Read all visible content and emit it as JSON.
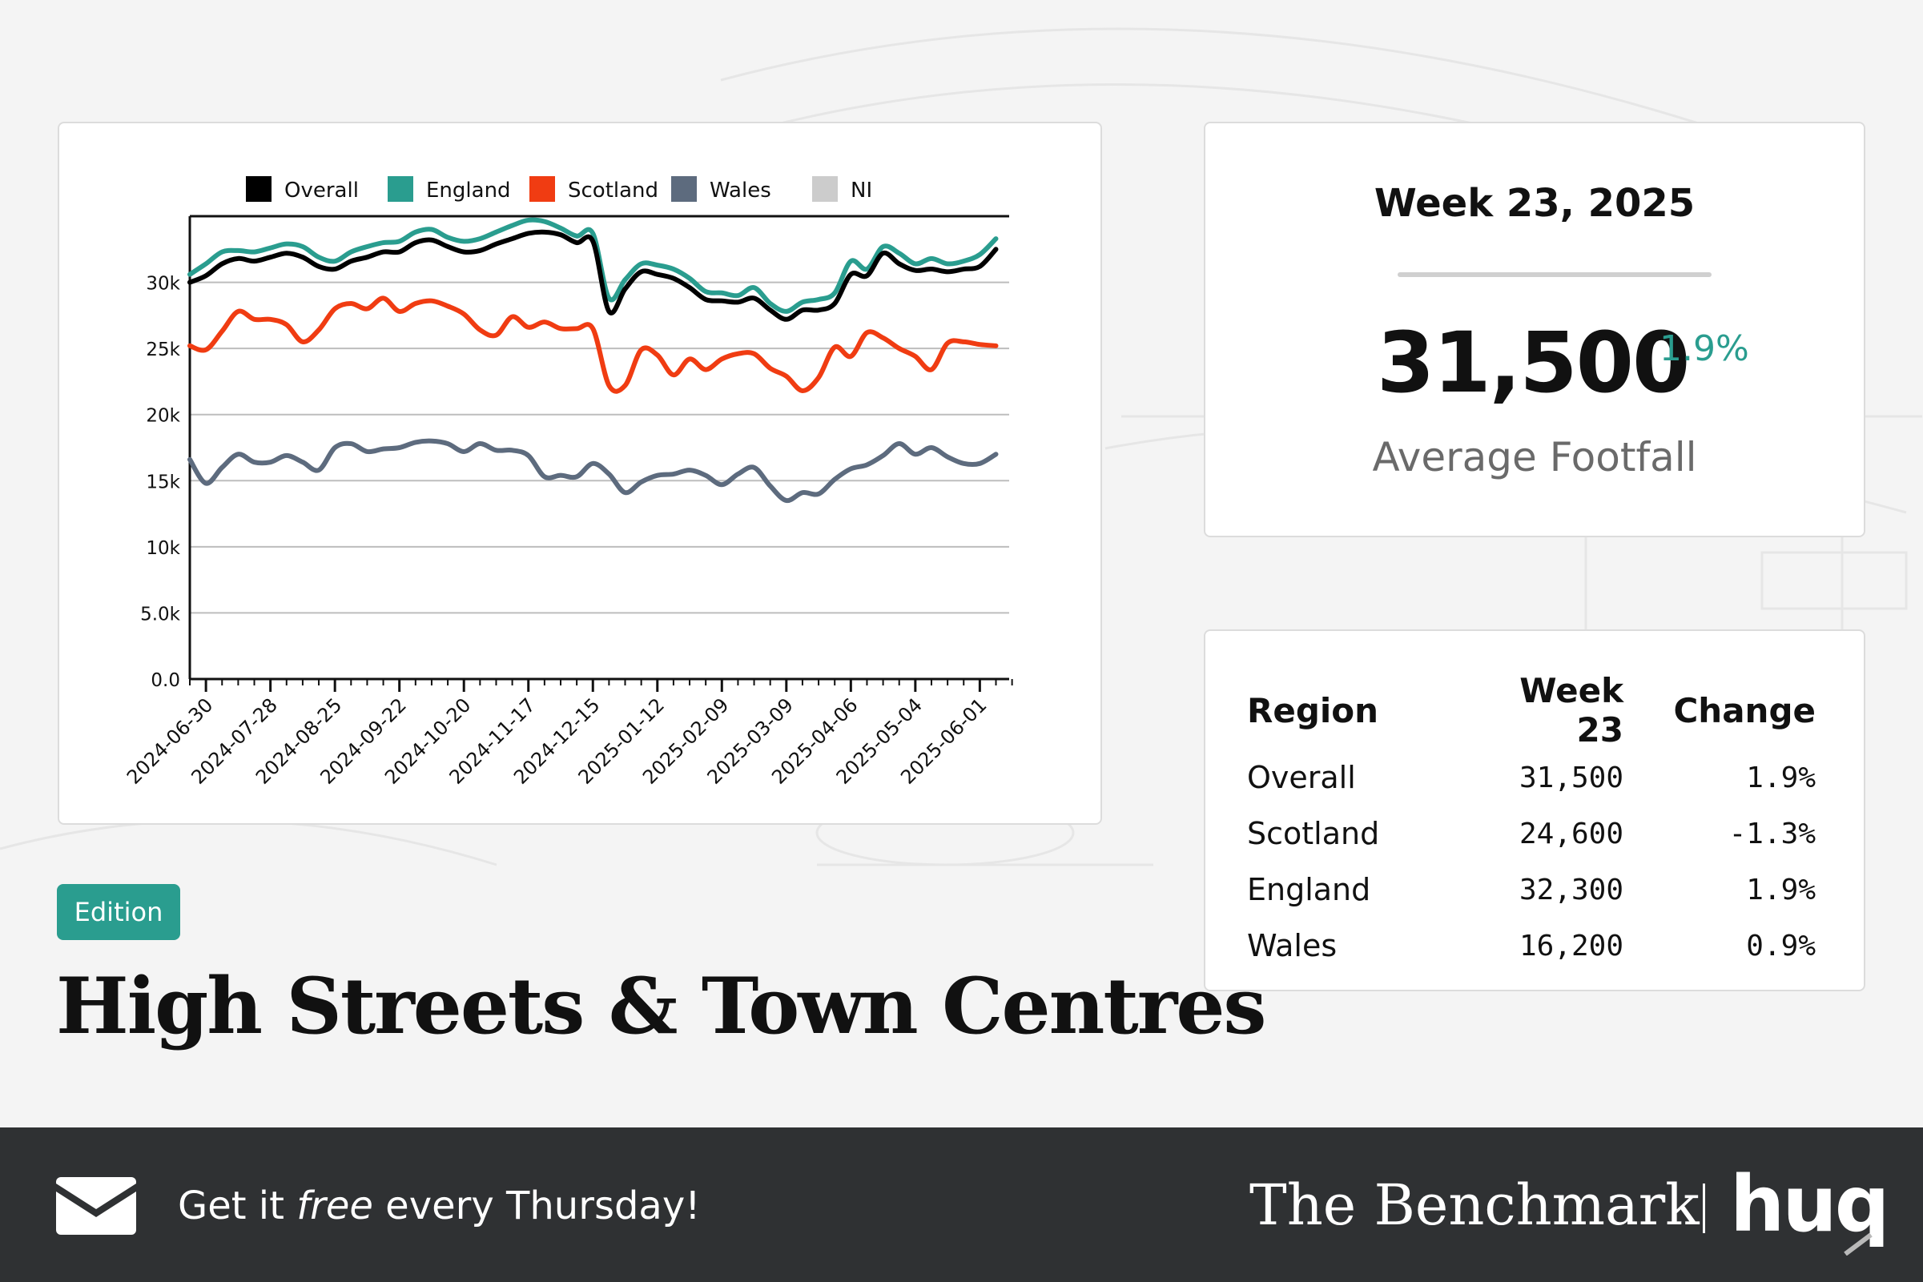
{
  "colors": {
    "overall": "#000000",
    "england": "#2a9d8f",
    "scotland": "#f03c12",
    "wales": "#5d6b7e",
    "ni": "#cccccc",
    "accent": "#2a9d8f",
    "footer_bg": "#2f3133"
  },
  "chart_data": {
    "type": "line",
    "title": "",
    "xlabel": "",
    "ylabel": "",
    "ylim": [
      0,
      35000
    ],
    "yticks": [
      0,
      5000,
      10000,
      15000,
      20000,
      25000,
      30000
    ],
    "ytick_labels": [
      "0.0",
      "5.0k",
      "10k",
      "15k",
      "20k",
      "25k",
      "30k"
    ],
    "x_tick_labels": [
      "2024-06-30",
      "2024-07-28",
      "2024-08-25",
      "2024-09-22",
      "2024-10-20",
      "2024-11-17",
      "2024-12-15",
      "2025-01-12",
      "2025-02-09",
      "2025-03-09",
      "2025-04-06",
      "2025-05-04",
      "2025-06-01"
    ],
    "x_start": "2024-06-23",
    "x_step_days": 7,
    "legend": [
      "Overall",
      "England",
      "Scotland",
      "Wales",
      "NI"
    ],
    "legend_position": "top-left",
    "series": [
      {
        "name": "Overall",
        "values": [
          30000,
          30500,
          31400,
          31800,
          31600,
          31900,
          32200,
          31900,
          31200,
          31000,
          31600,
          31900,
          32300,
          32300,
          33000,
          33200,
          32700,
          32300,
          32400,
          32900,
          33300,
          33700,
          33800,
          33600,
          33000,
          33100,
          27800,
          29500,
          30800,
          30600,
          30300,
          29600,
          28700,
          28600,
          28500,
          28800,
          27900,
          27200,
          27900,
          27900,
          28400,
          30600,
          30500,
          32200,
          31400,
          30900,
          31000,
          30800,
          31000,
          31200,
          32500
        ]
      },
      {
        "name": "England",
        "values": [
          30600,
          31400,
          32300,
          32400,
          32300,
          32600,
          32900,
          32700,
          31900,
          31600,
          32300,
          32700,
          33000,
          33100,
          33800,
          34000,
          33400,
          33100,
          33300,
          33800,
          34300,
          34700,
          34600,
          34100,
          33500,
          33700,
          28800,
          30200,
          31400,
          31300,
          31000,
          30300,
          29300,
          29200,
          29000,
          29600,
          28400,
          27800,
          28500,
          28700,
          29200,
          31600,
          31000,
          32700,
          32200,
          31400,
          31800,
          31400,
          31600,
          32100,
          33300
        ]
      },
      {
        "name": "Scotland",
        "values": [
          25200,
          24900,
          26300,
          27800,
          27200,
          27200,
          26800,
          25500,
          26400,
          28000,
          28400,
          28000,
          28800,
          27800,
          28400,
          28600,
          28200,
          27600,
          26400,
          26000,
          27400,
          26600,
          27000,
          26500,
          26500,
          26500,
          22200,
          22200,
          24900,
          24500,
          23000,
          24200,
          23400,
          24200,
          24600,
          24600,
          23500,
          22900,
          21800,
          22800,
          25100,
          24400,
          26200,
          25800,
          25000,
          24400,
          23400,
          25400,
          25500,
          25300,
          25200
        ]
      },
      {
        "name": "Wales",
        "values": [
          16600,
          14800,
          16000,
          17000,
          16400,
          16400,
          16900,
          16400,
          15800,
          17500,
          17800,
          17200,
          17400,
          17500,
          17900,
          18000,
          17800,
          17200,
          17800,
          17300,
          17300,
          16900,
          15300,
          15400,
          15300,
          16300,
          15500,
          14100,
          14900,
          15400,
          15500,
          15800,
          15400,
          14700,
          15500,
          16000,
          14600,
          13500,
          14100,
          14000,
          15100,
          15900,
          16200,
          16900,
          17800,
          17000,
          17500,
          16800,
          16300,
          16300,
          17000
        ]
      },
      {
        "name": "NI",
        "values": []
      }
    ]
  },
  "kpi": {
    "week_label": "Week 23, 2025",
    "value": "31,500",
    "change": "1.9%",
    "label": "Average Footfall"
  },
  "table": {
    "headers": [
      "Region",
      "Week 23",
      "Change"
    ],
    "rows": [
      [
        "Overall",
        "31,500",
        "1.9%"
      ],
      [
        "Scotland",
        "24,600",
        "-1.3%"
      ],
      [
        "England",
        "32,300",
        "1.9%"
      ],
      [
        "Wales",
        "16,200",
        "0.9%"
      ]
    ]
  },
  "edition_badge": "Edition",
  "headline": "High Streets & Town Centres",
  "footer": {
    "icon": "mail-icon",
    "cta_prefix": "Get it ",
    "cta_emphasis": "free",
    "cta_suffix": " every Thursday!",
    "brand": "The Benchmark",
    "logo": "huq"
  }
}
